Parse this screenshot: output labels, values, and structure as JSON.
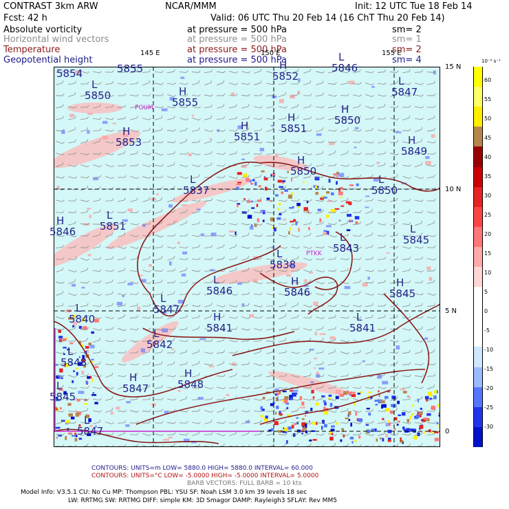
{
  "header": {
    "product": "CONTRAST  3km ARW",
    "center": "NCAR/MMM",
    "init": "Init: 12 UTC Tue 18 Feb 14",
    "fcst": "Fcst:    42 h",
    "valid": "Valid: 06 UTC Thu 20 Feb 14 (16 ChT Thu 20 Feb 14)"
  },
  "fields": [
    {
      "name": "Absolute vorticity",
      "level": "at pressure =   500 hPa",
      "sm": "sm= 2",
      "color": "#000000"
    },
    {
      "name": "Horizontal wind vectors",
      "level": "at pressure =   500 hPa",
      "sm": "sm= 1",
      "color": "#8c8c8c"
    },
    {
      "name": "Temperature",
      "level": "at pressure =   500 hPa",
      "sm": "sm= 2",
      "color": "#8b1a1a"
    },
    {
      "name": "Geopotential height",
      "level": "at pressure =   500 hPa",
      "sm": "sm= 4",
      "color": "#1a1a8b"
    }
  ],
  "colorbar": {
    "unit": "10⁻⁵ s⁻¹",
    "labels": [
      "60",
      "55",
      "50",
      "45",
      "40",
      "35",
      "30",
      "25",
      "20",
      "15",
      "10",
      "5",
      "0",
      "-5",
      "-10",
      "-15",
      "-20",
      "-25",
      "-30"
    ],
    "colors": [
      "#ffff00",
      "#ffff66",
      "#ffee00",
      "#b8864b",
      "#990000",
      "#cc0000",
      "#e62222",
      "#ff4444",
      "#ff7777",
      "#ffaaaa",
      "#ffd6d6",
      "#ffffff",
      "#ffffff",
      "#ffffff",
      "#cde8ff",
      "#99bbff",
      "#5577ff",
      "#2233ee",
      "#0011cc"
    ]
  },
  "axes": {
    "lon_labels": [
      "145 E",
      "150 E",
      "155 E"
    ],
    "lat_labels": [
      "15 N",
      "10 N",
      "5 N",
      "0"
    ]
  },
  "stations": [
    "PGUM",
    "PTKK"
  ],
  "height_centers": [
    {
      "sym": "",
      "val": "5854"
    },
    {
      "sym": "",
      "val": "5855"
    },
    {
      "sym": "L",
      "val": "5850"
    },
    {
      "sym": "H",
      "val": "5855"
    },
    {
      "sym": "H",
      "val": "5852"
    },
    {
      "sym": "L",
      "val": "5846"
    },
    {
      "sym": "L",
      "val": "5847"
    },
    {
      "sym": "H",
      "val": "5853"
    },
    {
      "sym": "H",
      "val": "5851"
    },
    {
      "sym": "H",
      "val": "5851"
    },
    {
      "sym": "H",
      "val": "5850"
    },
    {
      "sym": "H",
      "val": "5849"
    },
    {
      "sym": "H",
      "val": "5850"
    },
    {
      "sym": "L",
      "val": "5837"
    },
    {
      "sym": "L",
      "val": "5850"
    },
    {
      "sym": "H",
      "val": "5846"
    },
    {
      "sym": "L",
      "val": "5851"
    },
    {
      "sym": "L",
      "val": "5843"
    },
    {
      "sym": "L",
      "val": "5845"
    },
    {
      "sym": "L",
      "val": "5838"
    },
    {
      "sym": "H",
      "val": "5845"
    },
    {
      "sym": "L",
      "val": "5846"
    },
    {
      "sym": "H",
      "val": "5846"
    },
    {
      "sym": "L",
      "val": "5840"
    },
    {
      "sym": "L",
      "val": "5847"
    },
    {
      "sym": "L",
      "val": "5841"
    },
    {
      "sym": "H",
      "val": "5841"
    },
    {
      "sym": "L",
      "val": "5842"
    },
    {
      "sym": "L",
      "val": "5845"
    },
    {
      "sym": "H",
      "val": "5848"
    },
    {
      "sym": "H",
      "val": "5847"
    },
    {
      "sym": "L",
      "val": "5848"
    },
    {
      "sym": "L",
      "val": "5847"
    }
  ],
  "footer": {
    "contours1": "CONTOURS:  UNITS=m   LOW=  5880.0        HIGH=  5880.0        INTERVAL=   60.000",
    "contours2": "CONTOURS:  UNITS=°C   LOW= -5.0000        HIGH= -5.0000        INTERVAL=   5.0000",
    "barbs": "BARB VECTORS:  FULL BARB = 10 kts",
    "model1": "Model Info: V3.5.1      CU: No Cu      MP: Thompson      PBL: YSU        SF: Noah LSM       3.0 km   39 levels    18 sec",
    "model2": "LW: RRTMG    SW: RRTMG   DIFF: simple KM: 3D Smagor DAMP: Rayleigh3   SFLAY: Rev MM5"
  }
}
